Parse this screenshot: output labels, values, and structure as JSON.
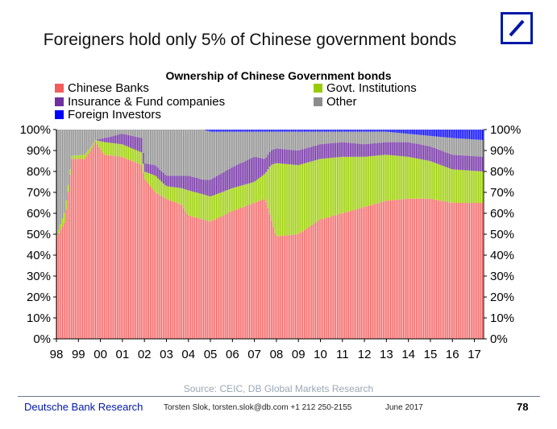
{
  "headline": "Foreigners hold only 5% of Chinese government bonds",
  "brand_color": "#0018a8",
  "logo_icon": "deutsche-bank-logo",
  "source": "Source: CEIC, DB Global Markets Research",
  "footer": {
    "left": "Deutsche Bank Research",
    "contact": "Torsten Slok, torsten.slok@db.com  +1 212 250-2155",
    "date": "June 2017",
    "page": "78"
  },
  "chart_data": {
    "type": "bar",
    "stacked": true,
    "title": "Ownership of Chinese Government bonds",
    "xlabel": "",
    "ylabel": "",
    "ylim": [
      0,
      100
    ],
    "y_tick_labels": [
      "0%",
      "10%",
      "20%",
      "30%",
      "40%",
      "50%",
      "60%",
      "70%",
      "80%",
      "90%",
      "100%"
    ],
    "x_tick_labels": [
      "98",
      "99",
      "00",
      "01",
      "02",
      "03",
      "04",
      "05",
      "06",
      "07",
      "08",
      "09",
      "10",
      "11",
      "12",
      "13",
      "14",
      "15",
      "16",
      "17"
    ],
    "x_range": [
      1998.0,
      2017.42
    ],
    "legend_placement": "top",
    "grid": false,
    "series": [
      {
        "name": "Chinese Banks",
        "color": "#f25c5c"
      },
      {
        "name": "Govt. Institutions",
        "color": "#99cc00"
      },
      {
        "name": "Insurance & Fund companies",
        "color": "#7030a0"
      },
      {
        "name": "Other",
        "color": "#8c8c8c"
      },
      {
        "name": "Foreign Investors",
        "color": "#0000ff"
      }
    ],
    "interpolation": "linear",
    "points": [
      {
        "x": 1998.0,
        "banks": 48,
        "govt": 0,
        "insurance": 0,
        "foreign": 0
      },
      {
        "x": 1998.4,
        "banks": 56,
        "govt": 5,
        "insurance": 0,
        "foreign": 0
      },
      {
        "x": 1998.7,
        "banks": 86,
        "govt": 1.5,
        "insurance": 0,
        "foreign": 0
      },
      {
        "x": 1999.3,
        "banks": 86,
        "govt": 2,
        "insurance": 0,
        "foreign": 0
      },
      {
        "x": 1999.8,
        "banks": 94,
        "govt": 1,
        "insurance": 0,
        "foreign": 0
      },
      {
        "x": 2000.2,
        "banks": 88,
        "govt": 6,
        "insurance": 2,
        "foreign": 0
      },
      {
        "x": 2001.0,
        "banks": 87,
        "govt": 6,
        "insurance": 5,
        "foreign": 0
      },
      {
        "x": 2001.9,
        "banks": 83,
        "govt": 6,
        "insurance": 7,
        "foreign": 0
      },
      {
        "x": 2002.0,
        "banks": 77,
        "govt": 3,
        "insurance": 4,
        "foreign": 0
      },
      {
        "x": 2002.5,
        "banks": 70,
        "govt": 8,
        "insurance": 5,
        "foreign": 0
      },
      {
        "x": 2003.0,
        "banks": 67,
        "govt": 6,
        "insurance": 5,
        "foreign": 0
      },
      {
        "x": 2003.7,
        "banks": 64,
        "govt": 8,
        "insurance": 6,
        "foreign": 0
      },
      {
        "x": 2004.0,
        "banks": 59,
        "govt": 12,
        "insurance": 7,
        "foreign": 0
      },
      {
        "x": 2004.7,
        "banks": 57,
        "govt": 12,
        "insurance": 7,
        "foreign": 0
      },
      {
        "x": 2005.0,
        "banks": 56,
        "govt": 12,
        "insurance": 8,
        "foreign": 1
      },
      {
        "x": 2006.0,
        "banks": 61,
        "govt": 11,
        "insurance": 10,
        "foreign": 1
      },
      {
        "x": 2007.0,
        "banks": 65,
        "govt": 10,
        "insurance": 12,
        "foreign": 1
      },
      {
        "x": 2007.5,
        "banks": 67,
        "govt": 12,
        "insurance": 7,
        "foreign": 1
      },
      {
        "x": 2007.75,
        "banks": 58,
        "govt": 25,
        "insurance": 7,
        "foreign": 1
      },
      {
        "x": 2008.0,
        "banks": 49,
        "govt": 35,
        "insurance": 7,
        "foreign": 1
      },
      {
        "x": 2009.0,
        "banks": 50,
        "govt": 33,
        "insurance": 7,
        "foreign": 1
      },
      {
        "x": 2010.0,
        "banks": 57,
        "govt": 29,
        "insurance": 7,
        "foreign": 1
      },
      {
        "x": 2011.0,
        "banks": 60,
        "govt": 27,
        "insurance": 7,
        "foreign": 1
      },
      {
        "x": 2012.0,
        "banks": 63,
        "govt": 24,
        "insurance": 6,
        "foreign": 1
      },
      {
        "x": 2013.0,
        "banks": 66,
        "govt": 22,
        "insurance": 6,
        "foreign": 1
      },
      {
        "x": 2014.0,
        "banks": 67,
        "govt": 20,
        "insurance": 7,
        "foreign": 2
      },
      {
        "x": 2015.0,
        "banks": 67,
        "govt": 18,
        "insurance": 7,
        "foreign": 3
      },
      {
        "x": 2016.0,
        "banks": 65,
        "govt": 16,
        "insurance": 7,
        "foreign": 4
      },
      {
        "x": 2017.42,
        "banks": 65,
        "govt": 15,
        "insurance": 7,
        "foreign": 5
      }
    ]
  }
}
